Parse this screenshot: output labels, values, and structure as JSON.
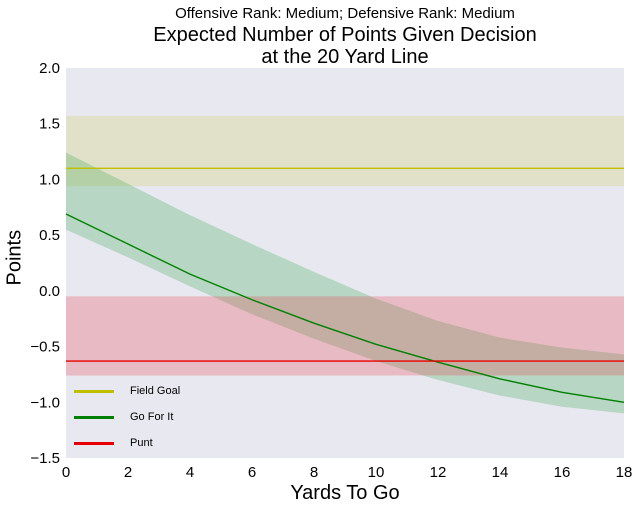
{
  "chart_data": {
    "type": "line",
    "subtitle": "Offensive Rank: Medium; Defensive Rank: Medium",
    "title_lines": [
      "Expected Number of Points Given Decision",
      "at the 20 Yard Line"
    ],
    "xlabel": "Yards To Go",
    "ylabel": "Points",
    "xlim": [
      0,
      18
    ],
    "ylim": [
      -1.5,
      2.0
    ],
    "xticks": [
      0,
      2,
      4,
      6,
      8,
      10,
      12,
      14,
      16,
      18
    ],
    "xtick_labels": [
      "0",
      "2",
      "4",
      "6",
      "8",
      "10",
      "12",
      "14",
      "16",
      "18"
    ],
    "yticks": [
      2.0,
      1.5,
      1.0,
      0.5,
      0.0,
      -0.5,
      -1.0,
      -1.5
    ],
    "ytick_labels": [
      "2.0",
      "1.5",
      "1.0",
      "0.5",
      "0.0",
      "−0.5",
      "−1.0",
      "−1.5"
    ],
    "grid": false,
    "legend_position": "lower-left",
    "background": "#e8e8f1",
    "series": [
      {
        "name": "Field Goal",
        "color": "#bfbf00",
        "band_color": "rgba(205,200,80,0.25)",
        "x": [
          0,
          18
        ],
        "y": [
          1.1,
          1.1
        ],
        "band_lower": [
          0.94,
          0.94
        ],
        "band_upper": [
          1.57,
          1.57
        ]
      },
      {
        "name": "Go For It",
        "color": "#008000",
        "band_color": "rgba(60,170,80,0.28)",
        "x": [
          0,
          2,
          4,
          6,
          8,
          10,
          12,
          14,
          16,
          18
        ],
        "y": [
          0.69,
          0.42,
          0.15,
          -0.08,
          -0.29,
          -0.48,
          -0.64,
          -0.79,
          -0.91,
          -1.0
        ],
        "band_lower": [
          0.55,
          0.3,
          0.04,
          -0.21,
          -0.43,
          -0.63,
          -0.8,
          -0.94,
          -1.04,
          -1.1
        ],
        "band_upper": [
          1.24,
          0.96,
          0.68,
          0.42,
          0.17,
          -0.07,
          -0.27,
          -0.42,
          -0.51,
          -0.57
        ]
      },
      {
        "name": "Punt",
        "color": "#e60000",
        "band_color": "rgba(230,70,80,0.28)",
        "x": [
          0,
          18
        ],
        "y": [
          -0.63,
          -0.63
        ],
        "band_lower": [
          -0.76,
          -0.76
        ],
        "band_upper": [
          -0.05,
          -0.05
        ]
      }
    ]
  }
}
